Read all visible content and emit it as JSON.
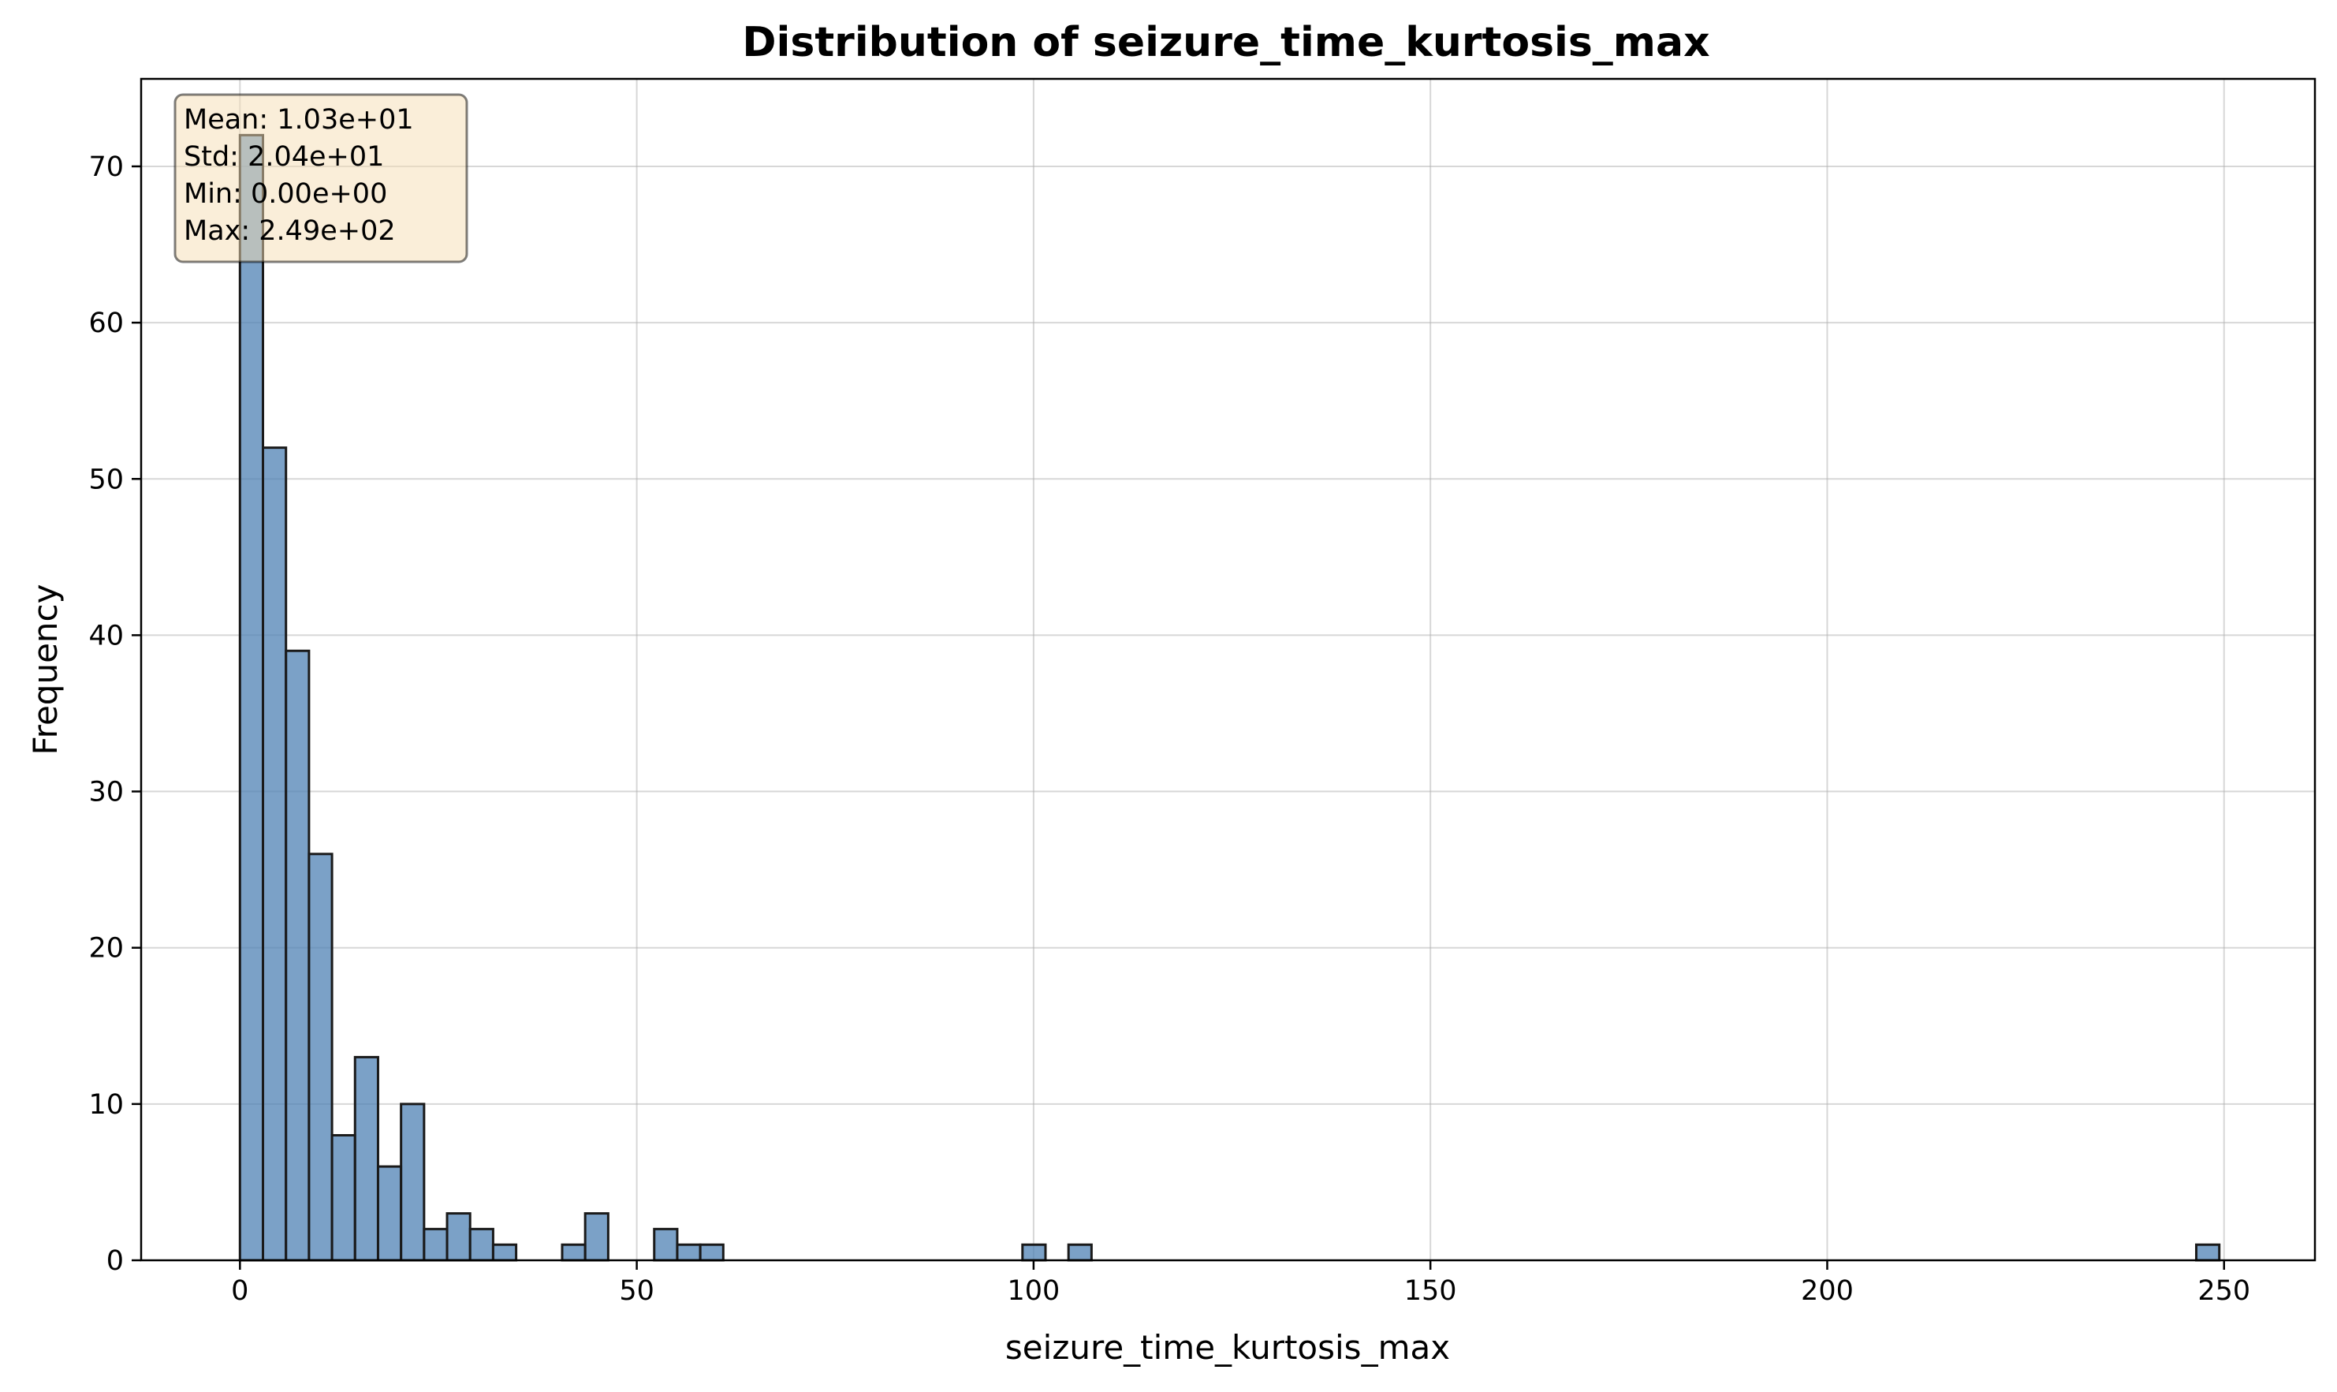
{
  "chart_data": {
    "type": "bar",
    "title": "Distribution of seizure_time_kurtosis_max",
    "xlabel": "seizure_time_kurtosis_max",
    "ylabel": "Frequency",
    "xlim": [
      -12.45,
      261.45
    ],
    "ylim": [
      0,
      75.6
    ],
    "x_ticks": [
      0,
      50,
      100,
      150,
      200,
      250
    ],
    "y_ticks": [
      0,
      10,
      20,
      30,
      40,
      50,
      60,
      70
    ],
    "grid": true,
    "bar_color": "#4f81b4",
    "bin_edges_start": 0,
    "bin_width": 2.9,
    "bins": [
      {
        "x": 0.0,
        "count": 72
      },
      {
        "x": 2.9,
        "count": 52
      },
      {
        "x": 5.8,
        "count": 39
      },
      {
        "x": 8.7,
        "count": 26
      },
      {
        "x": 11.6,
        "count": 8
      },
      {
        "x": 14.5,
        "count": 13
      },
      {
        "x": 17.4,
        "count": 6
      },
      {
        "x": 20.3,
        "count": 10
      },
      {
        "x": 23.2,
        "count": 2
      },
      {
        "x": 26.1,
        "count": 3
      },
      {
        "x": 29.0,
        "count": 2
      },
      {
        "x": 31.9,
        "count": 1
      },
      {
        "x": 40.6,
        "count": 1
      },
      {
        "x": 43.5,
        "count": 3
      },
      {
        "x": 52.2,
        "count": 2
      },
      {
        "x": 55.1,
        "count": 1
      },
      {
        "x": 58.0,
        "count": 1
      },
      {
        "x": 98.6,
        "count": 1
      },
      {
        "x": 104.4,
        "count": 1
      },
      {
        "x": 246.5,
        "count": 1
      }
    ],
    "stats_box": {
      "lines": [
        "Mean: 1.03e+01",
        "Std: 2.04e+01",
        "Min: 0.00e+00",
        "Max: 2.49e+02"
      ],
      "placement": "top-left",
      "background": "#f5deb3",
      "border": "#000000"
    }
  }
}
